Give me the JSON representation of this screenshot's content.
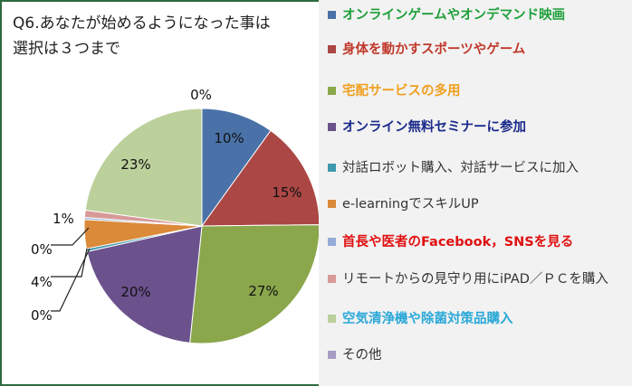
{
  "title": {
    "line1": "Q6.あなたが始めるようになった事は",
    "line2": "選択は３つまで"
  },
  "chart_data": {
    "type": "pie",
    "slices": [
      {
        "name": "オンラインゲームやオンデマンド映画",
        "value": 10,
        "label": "10%",
        "color": "#4a72a8",
        "legend_color": "#1e9f3a",
        "bold": true
      },
      {
        "name": "身体を動かすスポーツやゲーム",
        "value": 15,
        "label": "15%",
        "color": "#ab4744",
        "legend_color": "#c0392b",
        "bold": true
      },
      {
        "name": "宅配サービスの多用",
        "value": 27,
        "label": "27%",
        "color": "#8aa74c",
        "legend_color": "#f0a020",
        "bold": true
      },
      {
        "name": "オンライン無料セミナーに参加",
        "value": 20,
        "label": "20%",
        "color": "#6c528d",
        "legend_color": "#1a2a8a",
        "bold": true
      },
      {
        "name": "対話ロボット購入、対話サービスに加入",
        "value": 0.4,
        "label": "0%",
        "color": "#3f99ad",
        "legend_color": "#333333",
        "bold": false
      },
      {
        "name": "e-learningでスキルUP",
        "value": 4,
        "label": "4%",
        "color": "#db8a3a",
        "legend_color": "#333333",
        "bold": false
      },
      {
        "name": "首長や医者のFacebook，SNSを見る",
        "value": 0.3,
        "label": "0%",
        "color": "#95acd8",
        "legend_color": "#e01010",
        "bold": true
      },
      {
        "name": "リモートからの見守り用にiPAD／ＰＣを購入",
        "value": 1,
        "label": "1%",
        "color": "#d89999",
        "legend_color": "#333333",
        "bold": false
      },
      {
        "name": "空気清浄機や除菌対策品購入",
        "value": 23,
        "label": "23%",
        "color": "#bcd09b",
        "legend_color": "#2aa8d8",
        "bold": true
      },
      {
        "name": "その他",
        "value": 0,
        "label": "0%",
        "color": "#a69cc4",
        "legend_color": "#333333",
        "bold": false
      }
    ]
  }
}
